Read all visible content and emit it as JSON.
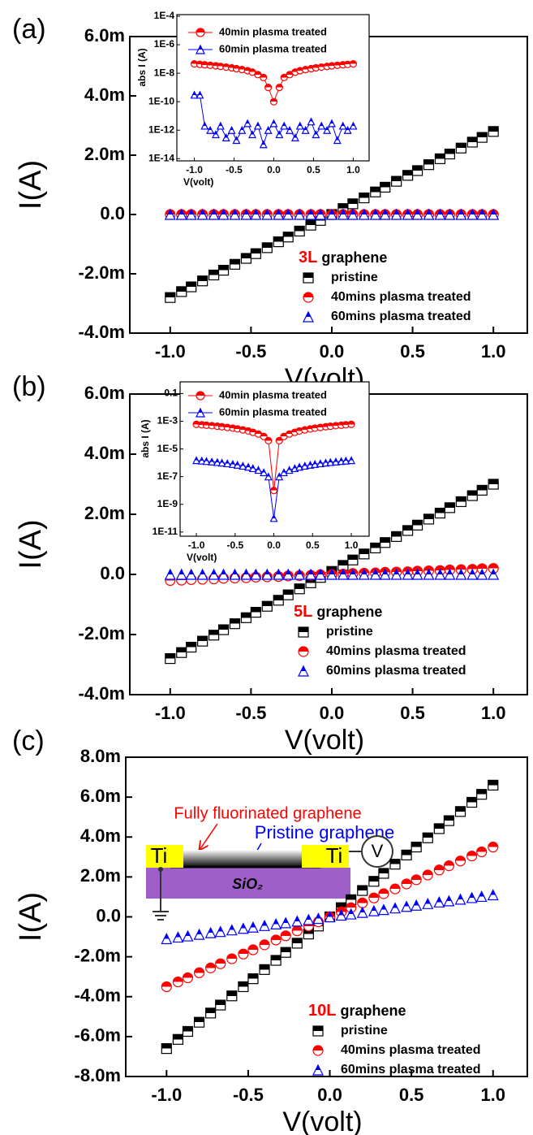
{
  "chart_data": [
    {
      "type": "scatter",
      "panel_label": "(a)",
      "xlabel": "V(volt)",
      "ylabel": "I(A)",
      "sample": "3L",
      "legend_title": "graphene",
      "xlim": [
        -1.25,
        1.21
      ],
      "ylim": [
        -0.004,
        0.006
      ],
      "xticks": [
        {
          "value": -1,
          "label": "-1.0"
        },
        {
          "value": -0.5,
          "label": "-0.5"
        },
        {
          "value": 0,
          "label": "0.0"
        },
        {
          "value": 0.5,
          "label": "0.5"
        },
        {
          "value": 1,
          "label": "1.0"
        }
      ],
      "yticks": [
        {
          "value": -0.004,
          "label": "-4.0m"
        },
        {
          "value": -0.002,
          "label": "-2.0m"
        },
        {
          "value": 0,
          "label": "0.0"
        },
        {
          "value": 0.002,
          "label": "2.0m"
        },
        {
          "value": 0.004,
          "label": "4.0m"
        },
        {
          "value": 0.006,
          "label": "6.0m"
        }
      ],
      "x": [
        -1,
        -0.93,
        -0.87,
        -0.8,
        -0.73,
        -0.67,
        -0.6,
        -0.53,
        -0.47,
        -0.4,
        -0.33,
        -0.27,
        -0.2,
        -0.13,
        -0.07,
        0,
        0.07,
        0.13,
        0.2,
        0.27,
        0.33,
        0.4,
        0.47,
        0.53,
        0.6,
        0.67,
        0.73,
        0.8,
        0.87,
        0.93,
        1
      ],
      "series": [
        {
          "name": "pristine",
          "color": "#000000",
          "marker": "square",
          "values": [
            -0.0028,
            -0.0026,
            -0.00244,
            -0.00224,
            -0.00204,
            -0.00188,
            -0.00168,
            -0.00148,
            -0.00132,
            -0.00112,
            -0.00092,
            -0.00076,
            -0.00056,
            -0.00036,
            -0.0002,
            0,
            0.0002,
            0.00036,
            0.00056,
            0.00076,
            0.00092,
            0.00112,
            0.00132,
            0.00148,
            0.00168,
            0.00188,
            0.00204,
            0.00224,
            0.00244,
            0.0026,
            0.0028
          ]
        },
        {
          "name": "40mins plasma treated",
          "color": "#ff0000",
          "marker": "circle",
          "values": [
            0,
            0,
            0,
            0,
            0,
            0,
            0,
            0,
            0,
            0,
            0,
            0,
            0,
            0,
            0,
            0,
            0,
            0,
            0,
            0,
            0,
            0,
            0,
            0,
            0,
            0,
            0,
            0,
            0,
            0,
            0
          ]
        },
        {
          "name": "60mins plasma treated",
          "color": "#0000ff",
          "marker": "triangle",
          "values": [
            0,
            0,
            0,
            0,
            0,
            0,
            0,
            0,
            0,
            0,
            0,
            0,
            0,
            0,
            0,
            0,
            0,
            0,
            0,
            0,
            0,
            0,
            0,
            0,
            0,
            0,
            0,
            0,
            0,
            0,
            0
          ]
        }
      ]
    },
    {
      "type": "scatter",
      "xlabel": "V(volt)",
      "ylabel": "abs I (A)",
      "yscale": "log",
      "line": true,
      "xlim": [
        -1.22,
        1.2
      ],
      "ylim": [
        7e-15,
        0.00013
      ],
      "xticks": [
        {
          "value": -1,
          "label": "-1.0"
        },
        {
          "value": -0.5,
          "label": "-0.5"
        },
        {
          "value": 0,
          "label": "0.0"
        },
        {
          "value": 0.5,
          "label": "0.5"
        },
        {
          "value": 1,
          "label": "1.0"
        }
      ],
      "yticks": [
        {
          "value": 1e-14,
          "label": "1E-14"
        },
        {
          "value": 1e-12,
          "label": "1E-12"
        },
        {
          "value": 1e-10,
          "label": "1E-10"
        },
        {
          "value": 1e-08,
          "label": "1E-8"
        },
        {
          "value": 1e-06,
          "label": "1E-6"
        },
        {
          "value": 0.0001,
          "label": "1E-4"
        }
      ],
      "x": [
        -1,
        -0.93,
        -0.87,
        -0.8,
        -0.73,
        -0.67,
        -0.6,
        -0.53,
        -0.47,
        -0.4,
        -0.33,
        -0.27,
        -0.2,
        -0.13,
        -0.07,
        0,
        0.07,
        0.13,
        0.2,
        0.27,
        0.33,
        0.4,
        0.47,
        0.53,
        0.6,
        0.67,
        0.73,
        0.8,
        0.87,
        0.93,
        1
      ],
      "series": [
        {
          "name": "40min plasma treated",
          "color": "#ff0000",
          "marker": "circle",
          "values": [
            4.5e-08,
            4.2e-08,
            3.9e-08,
            3.6e-08,
            3.3e-08,
            3e-08,
            2.7e-08,
            2.4e-08,
            2.1e-08,
            1.8e-08,
            1.5e-08,
            1.2e-08,
            8e-09,
            5e-09,
            1e-09,
            1e-10,
            1e-09,
            5e-09,
            8e-09,
            1.2e-08,
            1.5e-08,
            1.8e-08,
            2.1e-08,
            2.4e-08,
            2.7e-08,
            3e-08,
            3.3e-08,
            3.6e-08,
            3.9e-08,
            4.2e-08,
            4.5e-08
          ]
        },
        {
          "name": "60min plasma treated",
          "color": "#0000ff",
          "marker": "triangle",
          "values": [
            3e-10,
            3e-10,
            2e-12,
            1e-12,
            5e-13,
            2e-12,
            3e-13,
            1e-12,
            2e-13,
            1e-12,
            3e-12,
            5e-13,
            2e-12,
            1e-13,
            1e-12,
            3e-12,
            5e-13,
            2e-12,
            1e-12,
            3e-13,
            2e-12,
            1e-12,
            4e-12,
            5e-13,
            2e-12,
            1e-12,
            3e-12,
            2e-13,
            2e-12,
            1e-12,
            2e-12
          ]
        }
      ]
    },
    {
      "type": "scatter",
      "panel_label": "(b)",
      "xlabel": "V(volt)",
      "ylabel": "I(A)",
      "sample": "5L",
      "legend_title": "graphene",
      "xlim": [
        -1.25,
        1.21
      ],
      "ylim": [
        -0.004,
        0.006
      ],
      "xticks": [
        {
          "value": -1,
          "label": "-1.0"
        },
        {
          "value": -0.5,
          "label": "-0.5"
        },
        {
          "value": 0,
          "label": "0.0"
        },
        {
          "value": 0.5,
          "label": "0.5"
        },
        {
          "value": 1,
          "label": "1.0"
        }
      ],
      "yticks": [
        {
          "value": -0.004,
          "label": "-4.0m"
        },
        {
          "value": -0.002,
          "label": "-2.0m"
        },
        {
          "value": 0,
          "label": "0.0"
        },
        {
          "value": 0.002,
          "label": "2.0m"
        },
        {
          "value": 0.004,
          "label": "4.0m"
        },
        {
          "value": 0.006,
          "label": "6.0m"
        }
      ],
      "x": [
        -1,
        -0.93,
        -0.87,
        -0.8,
        -0.73,
        -0.67,
        -0.6,
        -0.53,
        -0.47,
        -0.4,
        -0.33,
        -0.27,
        -0.2,
        -0.13,
        -0.07,
        0,
        0.07,
        0.13,
        0.2,
        0.27,
        0.33,
        0.4,
        0.47,
        0.53,
        0.6,
        0.67,
        0.73,
        0.8,
        0.87,
        0.93,
        1
      ],
      "series": [
        {
          "name": "pristine",
          "color": "#000000",
          "marker": "square",
          "values": [
            -0.0028,
            -0.0026,
            -0.00242,
            -0.00222,
            -0.00202,
            -0.00184,
            -0.00164,
            -0.00144,
            -0.00126,
            -0.00106,
            -0.00086,
            -0.00068,
            -0.00048,
            -0.00028,
            -0.0001,
            0.0001,
            0.0003,
            0.00048,
            0.00068,
            0.00088,
            0.00106,
            0.00126,
            0.00146,
            0.00164,
            0.00184,
            0.00204,
            0.00222,
            0.00242,
            0.00262,
            0.0028,
            0.003
          ]
        },
        {
          "name": "40mins plasma treated",
          "color": "#ff0000",
          "marker": "circle",
          "values": [
            -0.0002,
            -0.00019,
            -0.00017,
            -0.00016,
            -0.00015,
            -0.00013,
            -0.00012,
            -0.00011,
            -9e-05,
            -8e-05,
            -7e-05,
            -5e-05,
            -4e-05,
            -3e-05,
            -1e-05,
            0,
            1e-05,
            3e-05,
            4e-05,
            5e-05,
            7e-05,
            8e-05,
            9e-05,
            0.00011,
            0.00012,
            0.00013,
            0.00015,
            0.00016,
            0.00017,
            0.00019,
            0.0002
          ]
        },
        {
          "name": "60mins plasma treated",
          "color": "#0000ff",
          "marker": "triangle",
          "values": [
            0,
            0,
            0,
            0,
            0,
            0,
            0,
            0,
            0,
            0,
            0,
            0,
            0,
            0,
            0,
            0,
            0,
            0,
            0,
            0,
            0,
            0,
            0,
            0,
            0,
            0,
            0,
            0,
            0,
            0,
            0
          ]
        }
      ]
    },
    {
      "type": "scatter",
      "xlabel": "V(volt)",
      "ylabel": "abs I (A)",
      "yscale": "log",
      "line": true,
      "xlim": [
        -1.21,
        1.23
      ],
      "ylim": [
        5e-12,
        0.7
      ],
      "xticks": [
        {
          "value": -1,
          "label": "-1.0"
        },
        {
          "value": -0.5,
          "label": "-0.5"
        },
        {
          "value": 0,
          "label": "0.0"
        },
        {
          "value": 0.5,
          "label": "0.5"
        },
        {
          "value": 1,
          "label": "1.0"
        }
      ],
      "yticks": [
        {
          "value": 1e-11,
          "label": "1E-11"
        },
        {
          "value": 1e-09,
          "label": "1E-9"
        },
        {
          "value": 1e-07,
          "label": "1E-7"
        },
        {
          "value": 1e-05,
          "label": "1E-5"
        },
        {
          "value": 0.001,
          "label": "1E-3"
        },
        0.1
      ],
      "x": [
        -1,
        -0.93,
        -0.87,
        -0.8,
        -0.73,
        -0.67,
        -0.6,
        -0.53,
        -0.47,
        -0.4,
        -0.33,
        -0.27,
        -0.2,
        -0.13,
        -0.07,
        0,
        0.07,
        0.13,
        0.2,
        0.27,
        0.33,
        0.4,
        0.47,
        0.53,
        0.6,
        0.67,
        0.73,
        0.8,
        0.87,
        0.93,
        1
      ],
      "series": [
        {
          "name": "40min plasma treated",
          "color": "#ff0000",
          "marker": "circle",
          "values": [
            0.0006,
            0.00056,
            0.00052,
            0.00048,
            0.00044,
            0.0004,
            0.00036,
            0.00032,
            0.00028,
            0.00024,
            0.0002,
            0.00016,
            0.00012,
            8e-05,
            4e-05,
            1e-08,
            4e-05,
            8e-05,
            0.00012,
            0.00016,
            0.0002,
            0.00024,
            0.00028,
            0.00032,
            0.00036,
            0.0004,
            0.00044,
            0.00048,
            0.00052,
            0.00056,
            0.0006
          ]
        },
        {
          "name": "60min plasma treated",
          "color": "#0000ff",
          "marker": "triangle",
          "values": [
            1.5e-06,
            1.4e-06,
            1.3e-06,
            1.2e-06,
            1.1e-06,
            1e-06,
            9e-07,
            8e-07,
            7e-07,
            6e-07,
            5e-07,
            4e-07,
            3e-07,
            2e-07,
            1e-07,
            1e-10,
            1e-07,
            2e-07,
            3e-07,
            4e-07,
            5e-07,
            6e-07,
            7e-07,
            8e-07,
            9e-07,
            1e-06,
            1.1e-06,
            1.2e-06,
            1.3e-06,
            1.4e-06,
            1.5e-06
          ]
        }
      ]
    },
    {
      "type": "scatter",
      "panel_label": "(c)",
      "xlabel": "V(volt)",
      "ylabel": "I(A)",
      "sample": "10L",
      "legend_title": "graphene",
      "annotations": [
        "Fully fluorinated graphene",
        "Pristine graphene",
        "Ti",
        "Ti",
        "V",
        "SiO₂"
      ],
      "xlim": [
        -1.25,
        1.21
      ],
      "ylim": [
        -0.008,
        0.008
      ],
      "xticks": [
        {
          "value": -1,
          "label": "-1.0"
        },
        {
          "value": -0.5,
          "label": "-0.5"
        },
        {
          "value": 0,
          "label": "0.0"
        },
        {
          "value": 0.5,
          "label": "0.5"
        },
        {
          "value": 1,
          "label": "1.0"
        }
      ],
      "yticks": [
        {
          "value": -0.008,
          "label": "-8.0m"
        },
        {
          "value": -0.006,
          "label": "-6.0m"
        },
        {
          "value": -0.004,
          "label": "-4.0m"
        },
        {
          "value": -0.002,
          "label": "-2.0m"
        },
        {
          "value": 0,
          "label": "0.0"
        },
        {
          "value": 0.002,
          "label": "2.0m"
        },
        {
          "value": 0.004,
          "label": "4.0m"
        },
        {
          "value": 0.006,
          "label": "6.0m"
        },
        {
          "value": 0.008,
          "label": "8.0m"
        }
      ],
      "x": [
        -1,
        -0.93,
        -0.87,
        -0.8,
        -0.73,
        -0.67,
        -0.6,
        -0.53,
        -0.47,
        -0.4,
        -0.33,
        -0.27,
        -0.2,
        -0.13,
        -0.07,
        0,
        0.07,
        0.13,
        0.2,
        0.27,
        0.33,
        0.4,
        0.47,
        0.53,
        0.6,
        0.67,
        0.73,
        0.8,
        0.87,
        0.93,
        1
      ],
      "series": [
        {
          "name": "pristine",
          "color": "#000000",
          "marker": "square",
          "values": [
            -0.0066,
            -0.00614,
            -0.00574,
            -0.00528,
            -0.00482,
            -0.00442,
            -0.00396,
            -0.0035,
            -0.0031,
            -0.00264,
            -0.00218,
            -0.00178,
            -0.00132,
            -0.00086,
            -0.00046,
            0,
            0.00046,
            0.00086,
            0.00132,
            0.00178,
            0.00218,
            0.00264,
            0.0031,
            0.0035,
            0.00396,
            0.00442,
            0.00482,
            0.00528,
            0.00574,
            0.00614,
            0.0066
          ]
        },
        {
          "name": "40mins plasma treated",
          "color": "#ff0000",
          "marker": "circle",
          "values": [
            -0.0035,
            -0.00326,
            -0.00305,
            -0.0028,
            -0.00256,
            -0.00235,
            -0.0021,
            -0.00186,
            -0.00165,
            -0.0014,
            -0.00116,
            -0.00095,
            -0.0007,
            -0.00046,
            -0.00025,
            0,
            0.00025,
            0.00046,
            0.0007,
            0.00095,
            0.00116,
            0.0014,
            0.00165,
            0.00186,
            0.0021,
            0.00235,
            0.00256,
            0.0028,
            0.00305,
            0.00326,
            0.0035
          ]
        },
        {
          "name": "60mins plasma treated",
          "color": "#0000ff",
          "marker": "triangle",
          "values": [
            -0.0011,
            -0.00102,
            -0.00096,
            -0.00088,
            -0.0008,
            -0.00074,
            -0.00066,
            -0.00058,
            -0.00052,
            -0.00044,
            -0.00036,
            -0.0003,
            -0.00022,
            -0.00014,
            -8e-05,
            0,
            8e-05,
            0.00014,
            0.00022,
            0.0003,
            0.00036,
            0.00044,
            0.00052,
            0.00058,
            0.00066,
            0.00074,
            0.0008,
            0.00088,
            0.00096,
            0.00102,
            0.0011
          ]
        }
      ]
    }
  ]
}
